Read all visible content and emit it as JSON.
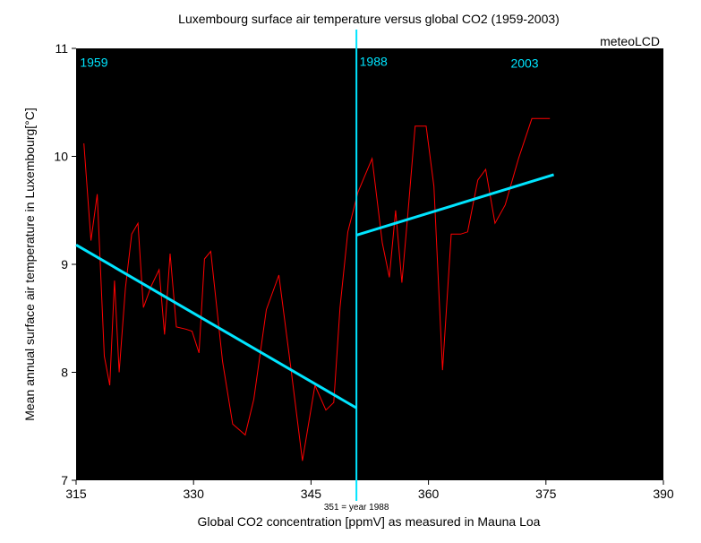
{
  "chart_data": {
    "type": "line",
    "title": "Luxembourg surface air temperature versus global CO2 (1959-2003)",
    "xlabel": "Global CO2 concentration [ppmV] as measured in Mauna Loa",
    "ylabel": "Mean annual surface air temperature in Luxembourg[°C]",
    "xlim": [
      315,
      390
    ],
    "ylim": [
      7,
      11
    ],
    "xticks": [
      315,
      330,
      345,
      360,
      375,
      390
    ],
    "yticks": [
      7,
      8,
      9,
      10,
      11
    ],
    "grid": false,
    "watermark": "meteoLCD",
    "colors": {
      "background": "#000000",
      "series": "#ff0000",
      "trend": "#00e5ff",
      "marker_text": "#00e5ff"
    },
    "series": [
      {
        "x": [
          316.0,
          316.9,
          317.7,
          318.6,
          319.3,
          319.9,
          320.5,
          321.3,
          322.1,
          322.9,
          323.6,
          324.6,
          325.6,
          326.3,
          327.0,
          327.8,
          329.0,
          329.8,
          330.7,
          331.4,
          332.2,
          333.7,
          335.0,
          336.6,
          337.7,
          339.3,
          340.9,
          342.5,
          343.9,
          345.5,
          346.9,
          347.9,
          348.7,
          349.7,
          351.0,
          352.8,
          354.1,
          355.0,
          355.8,
          356.6,
          357.4,
          358.3,
          359.7,
          360.7,
          361.8,
          362.9,
          364.1,
          365.0,
          366.3,
          367.3,
          368.5,
          369.8,
          371.5,
          373.2,
          375.5
        ],
        "y": [
          10.12,
          9.22,
          9.65,
          8.15,
          7.88,
          8.85,
          8.0,
          8.78,
          9.28,
          9.38,
          8.6,
          8.8,
          8.95,
          8.35,
          9.1,
          8.42,
          8.4,
          8.38,
          8.18,
          9.05,
          9.12,
          8.1,
          7.52,
          7.42,
          7.75,
          8.58,
          8.9,
          8.0,
          7.18,
          7.88,
          7.65,
          7.72,
          8.6,
          9.3,
          9.67,
          9.98,
          9.2,
          8.88,
          9.5,
          8.83,
          9.5,
          10.28,
          10.28,
          9.72,
          8.02,
          9.28,
          9.28,
          9.3,
          9.78,
          9.88,
          9.38,
          9.55,
          9.98,
          10.35,
          10.35
        ]
      }
    ],
    "trends": [
      {
        "x": [
          315,
          350.8
        ],
        "y": [
          9.18,
          7.67
        ]
      },
      {
        "x": [
          350.8,
          376
        ],
        "y": [
          9.27,
          9.83
        ]
      }
    ],
    "vline": {
      "x": 350.8,
      "label_below": "351 = year 1988"
    },
    "annotations": [
      {
        "text": "1959",
        "x": 315.5,
        "y": 10.83
      },
      {
        "text": "1988",
        "x": 351.2,
        "y": 10.84
      },
      {
        "text": "2003",
        "x": 370.5,
        "y": 10.82
      }
    ]
  }
}
